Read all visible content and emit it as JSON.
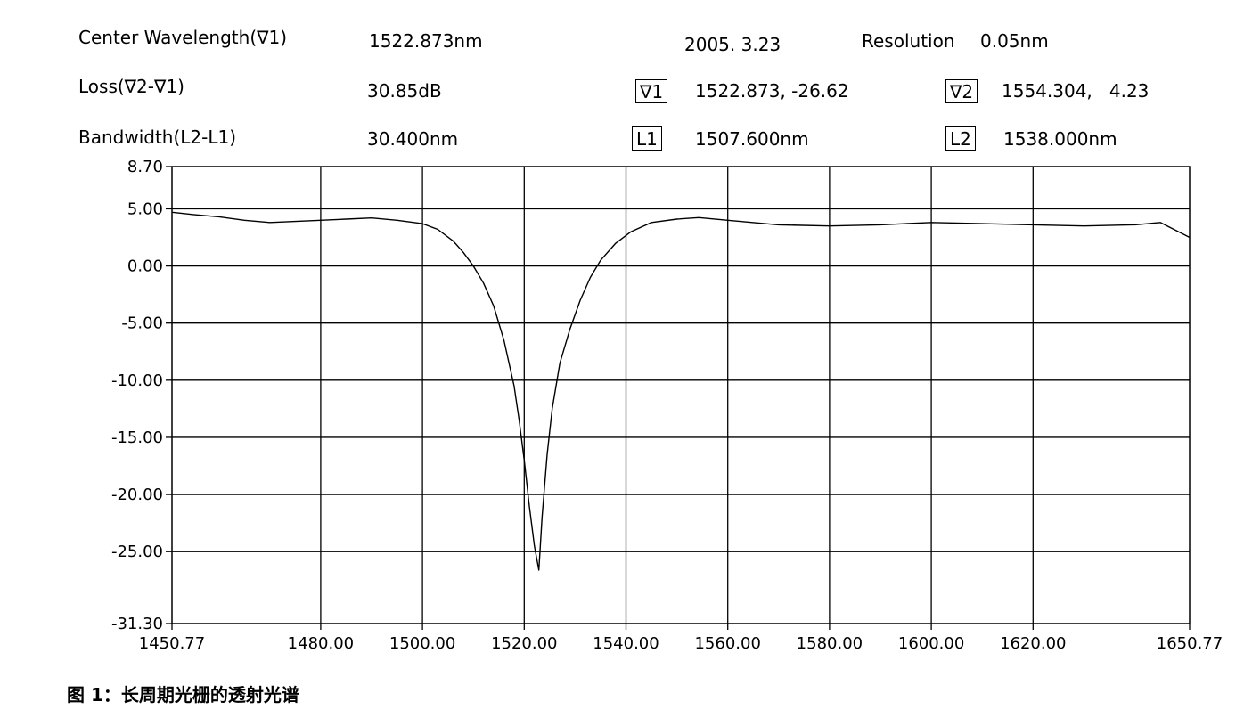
{
  "header": {
    "center_wavelength_label": "Center Wavelength(∇1)",
    "center_wavelength_value": "1522.873nm",
    "date": "2005. 3.23",
    "resolution_label": "Resolution",
    "resolution_value": "0.05nm",
    "loss_label": "Loss(∇2-∇1)",
    "loss_value": "30.85dB",
    "bandwidth_label": "Bandwidth(L2-L1)",
    "bandwidth_value": "30.400nm",
    "markers": [
      {
        "tag": "∇1",
        "value": "1522.873, -26.62"
      },
      {
        "tag": "∇2",
        "value": "1554.304,   4.23"
      },
      {
        "tag": "L1",
        "value": "1507.600nm"
      },
      {
        "tag": "L2",
        "value": "1538.000nm"
      }
    ]
  },
  "caption": "图 1：长周期光栅的透射光谱",
  "chart_data": {
    "type": "line",
    "title": "",
    "xlabel": "",
    "ylabel": "",
    "xlim": [
      1450.77,
      1650.77
    ],
    "ylim": [
      -31.3,
      8.7
    ],
    "x_tick_labels": [
      "1450.77",
      "1480.00",
      "1500.00",
      "1520.00",
      "1540.00",
      "1560.00",
      "1580.00",
      "1600.00",
      "1620.00",
      "1650.77"
    ],
    "y_tick_labels": [
      "8.70",
      "5.00",
      "0.00",
      "-5.00",
      "-10.00",
      "-15.00",
      "-20.00",
      "-25.00",
      "-31.30"
    ],
    "grid": true,
    "series": [
      {
        "x": [
          1450.77,
          1455,
          1460,
          1465,
          1470,
          1475,
          1480,
          1485,
          1490,
          1495,
          1500,
          1503,
          1506,
          1508,
          1510,
          1512,
          1514,
          1516,
          1518,
          1519,
          1520,
          1521,
          1522,
          1522.873,
          1523.5,
          1524.5,
          1525.5,
          1527,
          1529,
          1531,
          1533,
          1535,
          1538,
          1541,
          1545,
          1550,
          1554.304,
          1560,
          1570,
          1580,
          1590,
          1600,
          1610,
          1620,
          1630,
          1640,
          1645,
          1650.77
        ],
        "y": [
          4.7,
          4.5,
          4.3,
          4.0,
          3.8,
          3.9,
          4.0,
          4.1,
          4.2,
          4.0,
          3.7,
          3.2,
          2.2,
          1.2,
          0.0,
          -1.5,
          -3.5,
          -6.5,
          -10.5,
          -13.5,
          -17.0,
          -21.0,
          -24.5,
          -26.62,
          -22.0,
          -16.5,
          -12.5,
          -8.5,
          -5.5,
          -3.0,
          -1.0,
          0.5,
          2.0,
          3.0,
          3.8,
          4.1,
          4.23,
          4.0,
          3.6,
          3.5,
          3.6,
          3.8,
          3.7,
          3.6,
          3.5,
          3.6,
          3.8,
          2.5
        ]
      }
    ]
  }
}
